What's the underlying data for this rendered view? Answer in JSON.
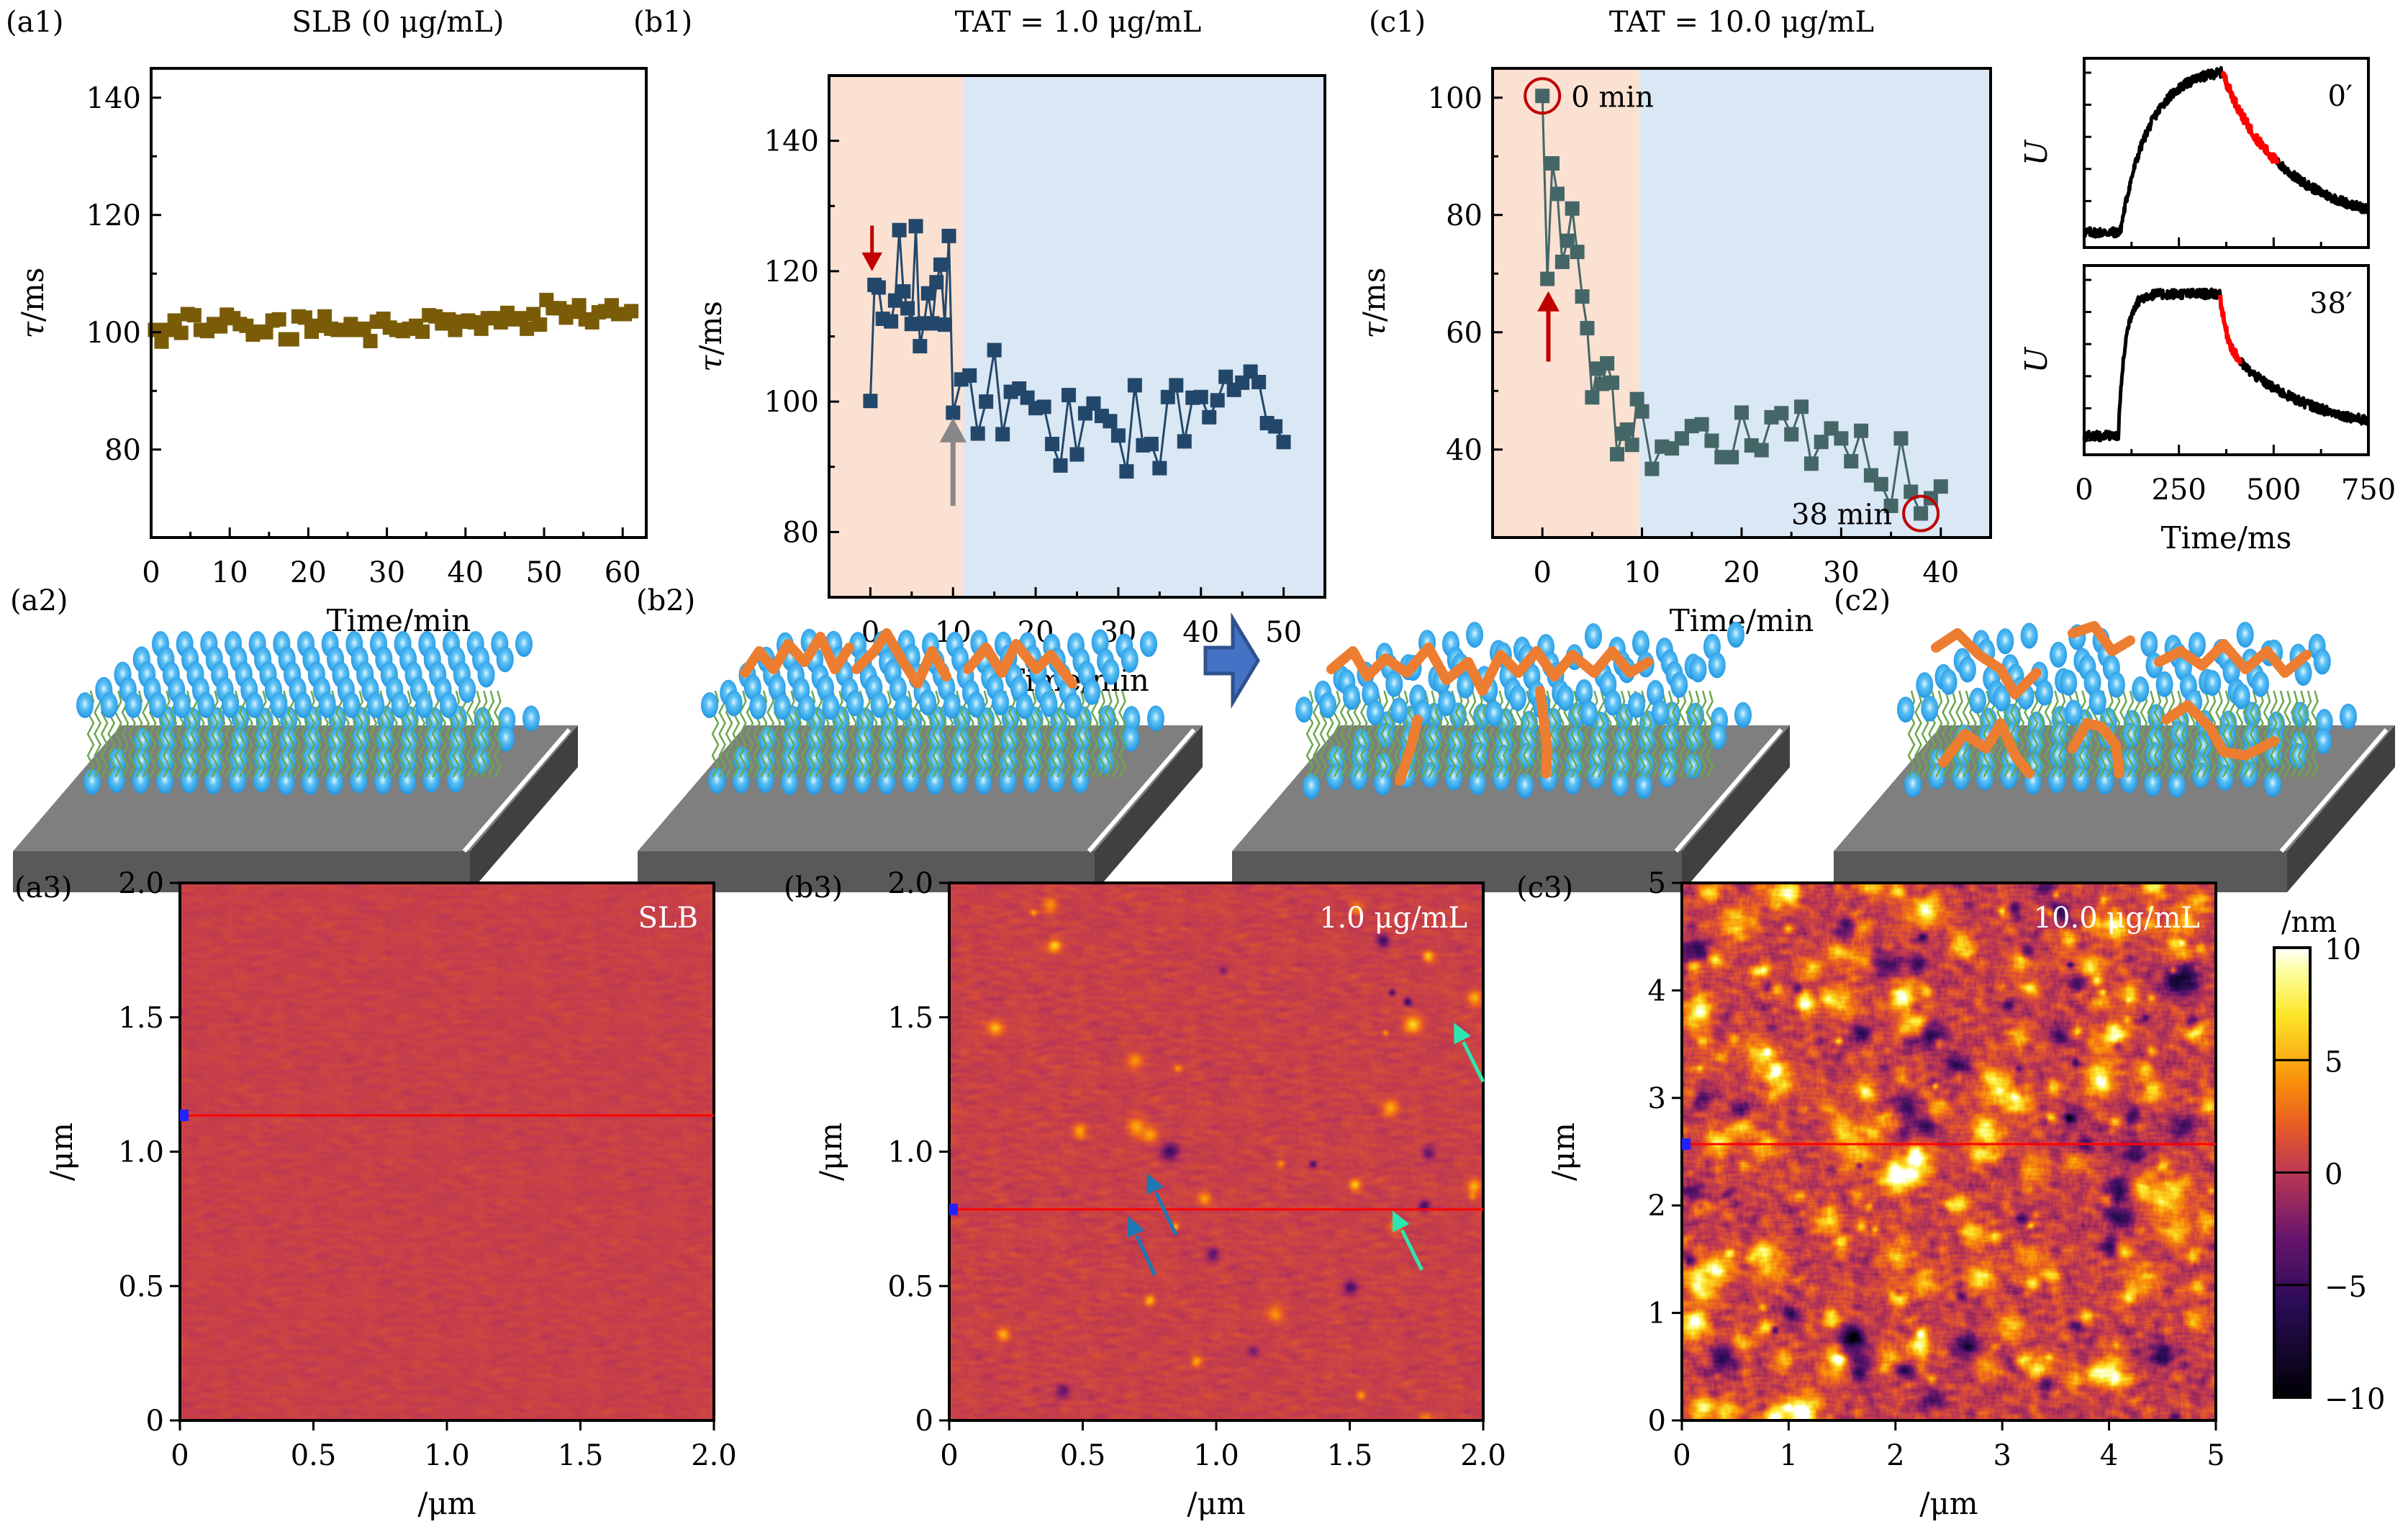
{
  "panels": {
    "a1": {
      "label": "(a1)",
      "title": "SLB (0 μg/mL)"
    },
    "b1": {
      "label": "(b1)",
      "title": "TAT = 1.0 μg/mL"
    },
    "c1": {
      "label": "(c1)",
      "title": "TAT = 10.0 μg/mL",
      "annot_start": "0 min",
      "annot_end": "38 min"
    },
    "u": {
      "top_tag": "0′",
      "bottom_tag": "38′"
    },
    "a2": {
      "label": "(a2)"
    },
    "b2": {
      "label": "(b2)"
    },
    "c2": {
      "label": "(c2)"
    },
    "a3": {
      "label": "(a3)",
      "tag": "SLB"
    },
    "b3": {
      "label": "(b3)",
      "tag": "1.0 μg/mL"
    },
    "c3": {
      "label": "(c3)",
      "tag": "10.0 μg/mL"
    }
  },
  "colors": {
    "a1_marker": "#7a5c08",
    "b1_marker": "#23476a",
    "c1_marker": "#456666",
    "phase1_bg": "#fae1d2",
    "phase2_bg": "#dae7f4",
    "arrow_red": "#c00000",
    "arrow_gray": "#888888",
    "circle_red": "#c00000",
    "trace": "#000000",
    "trace_fit": "#ff0000",
    "blue_arrow": "#1f77b4",
    "teal_arrow": "#2ee6b0",
    "scan_line": "#ff0000"
  },
  "chart_data": [
    {
      "id": "a1",
      "type": "scatter",
      "title": "SLB (0 μg/mL)",
      "xlabel": "Time/min",
      "ylabel": "τ/ms",
      "xlim": [
        0,
        63
      ],
      "ylim": [
        65,
        145
      ],
      "xticks": [
        0,
        10,
        20,
        30,
        40,
        50,
        60
      ],
      "yticks": [
        80,
        100,
        120,
        140
      ],
      "x_start": 0.5,
      "x_step": 0.83,
      "values": [
        100.4,
        98.4,
        100.4,
        102,
        99.9,
        103.1,
        102.9,
        100.4,
        100.2,
        101.4,
        101,
        103,
        102.4,
        101.4,
        101.1,
        99.6,
        100.1,
        100,
        102,
        102.2,
        98.8,
        98.8,
        102.7,
        102.5,
        100.1,
        101.1,
        102.7,
        100.6,
        100.4,
        100.4,
        101.4,
        100.4,
        100.6,
        98.5,
        101.8,
        102.3,
        100.8,
        100.4,
        100.2,
        100.6,
        101.1,
        100.1,
        102.9,
        102.7,
        101.5,
        102.2,
        100.4,
        101.8,
        102,
        101.7,
        100.6,
        102.4,
        102.4,
        101.7,
        103.3,
        102.2,
        102.4,
        100.6,
        103.1,
        101.3,
        105.5,
        104.1,
        104.1,
        102.5,
        103.5,
        104.6,
        102.2,
        101.7,
        103.4,
        103.6,
        104.6,
        103.1,
        103.1,
        103.6
      ]
    },
    {
      "id": "b1",
      "type": "line",
      "title": "TAT = 1.0 μg/mL",
      "xlabel": "Time/min",
      "ylabel": "τ/ms",
      "xlim": [
        -5,
        55
      ],
      "ylim": [
        70,
        150
      ],
      "xticks": [
        0,
        10,
        20,
        30,
        40,
        50
      ],
      "yticks": [
        80,
        100,
        120,
        140
      ],
      "phase_boundary": 11.2,
      "x": [
        0,
        0.5,
        1,
        1.5,
        2.5,
        3,
        3.5,
        4,
        4.5,
        5,
        5.5,
        6,
        6.5,
        7,
        7.5,
        8,
        8.5,
        9,
        9.5,
        10,
        11,
        12,
        13,
        14,
        15,
        16,
        17,
        18,
        19,
        20,
        21,
        22,
        23,
        24,
        25,
        26,
        27,
        28,
        29,
        30,
        31,
        32,
        33,
        34,
        35,
        36,
        37,
        38,
        39,
        40,
        41,
        42,
        43,
        44,
        45,
        46,
        47,
        48,
        49,
        50
      ],
      "values": [
        100.1,
        117.9,
        117.5,
        112.7,
        112.3,
        115.5,
        126.3,
        116.9,
        114.3,
        111.9,
        126.9,
        108.5,
        112,
        116.6,
        112,
        118.3,
        121,
        111.8,
        125.4,
        98.3,
        103.4,
        104,
        95.1,
        100,
        107.9,
        95,
        101.5,
        102,
        100.6,
        99,
        99.2,
        93.5,
        90.2,
        101,
        91.9,
        98.2,
        99.7,
        97.8,
        97,
        94.8,
        89.3,
        102.5,
        93.3,
        93.5,
        89.8,
        100.7,
        102.5,
        93.9,
        100.6,
        100.7,
        97.6,
        100.2,
        103.8,
        101.8,
        102.9,
        104.6,
        103,
        96.7,
        96.2,
        93.8
      ],
      "annotations": [
        {
          "type": "arrow-down",
          "color": "red",
          "x": 0.2,
          "y_from": 127,
          "y_to": 120
        },
        {
          "type": "arrow-up",
          "color": "gray",
          "x": 10,
          "y_from": 85,
          "y_to": 97
        }
      ]
    },
    {
      "id": "c1",
      "type": "line",
      "title": "TAT = 10.0 μg/mL",
      "xlabel": "Time/min",
      "ylabel": "τ/ms",
      "xlim": [
        -5,
        45
      ],
      "ylim": [
        25,
        105
      ],
      "xticks": [
        0,
        10,
        20,
        30,
        40
      ],
      "yticks": [
        40,
        60,
        80,
        100
      ],
      "phase_boundary": 9.8,
      "x": [
        0,
        0.5,
        1,
        1.5,
        2,
        2.5,
        3,
        3.5,
        4,
        4.5,
        5,
        5.5,
        6,
        6.5,
        7,
        7.5,
        8,
        8.5,
        9,
        9.5,
        10,
        11,
        12,
        13,
        14,
        15,
        16,
        17,
        18,
        19,
        20,
        21,
        22,
        23,
        24,
        25,
        26,
        27,
        28,
        29,
        30,
        31,
        32,
        33,
        34,
        35,
        36,
        37,
        38,
        39,
        40
      ],
      "values": [
        100.3,
        69.1,
        88.8,
        83.6,
        72,
        75.6,
        81.1,
        73.7,
        66.1,
        60.7,
        48.9,
        53.8,
        51.2,
        54.7,
        51.4,
        39.2,
        42.7,
        43.4,
        40.8,
        48.6,
        46.5,
        36.7,
        40.5,
        40.2,
        41.9,
        44,
        44.3,
        41.5,
        38.7,
        38.7,
        46.3,
        40.7,
        39.9,
        45.5,
        46.2,
        42.6,
        47.3,
        37.6,
        41.3,
        43.6,
        41.9,
        38,
        43.2,
        35.6,
        34.1,
        30.4,
        41.9,
        32.8,
        29.1,
        31.7,
        33.7
      ],
      "annotations": [
        {
          "type": "circle",
          "x": 0,
          "y": 100.3,
          "text": "0 min"
        },
        {
          "type": "circle",
          "x": 38,
          "y": 29.1,
          "text": "38 min"
        },
        {
          "type": "arrow-up",
          "color": "red",
          "x": 0.6,
          "y_from": 56,
          "y_to": 67
        }
      ]
    },
    {
      "id": "u_traces",
      "type": "line",
      "xlabel": "Time/ms",
      "ylabel": "U",
      "xlim": [
        0,
        750
      ],
      "xticks": [
        0,
        250,
        500,
        750
      ],
      "series": [
        {
          "name": "0′",
          "baseline": 0.08,
          "plateau": 0.95,
          "t_on": 95,
          "t_off": 365,
          "tau_rise": 75,
          "tau_fall": 95,
          "fit_window": [
            365,
            510
          ]
        },
        {
          "name": "38′",
          "baseline": 0.1,
          "plateau": 0.85,
          "t_on": 90,
          "t_off": 358,
          "tau_rise": 18,
          "tau_fall": 18,
          "fit_window": [
            358,
            412
          ]
        }
      ]
    }
  ],
  "afm": [
    {
      "id": "a3",
      "tag": "SLB",
      "xlabel": "/μm",
      "ylabel": "/μm",
      "range": [
        0,
        2.0
      ],
      "ticks": [
        "0",
        "0.5",
        "1.0",
        "1.5",
        "2.0"
      ],
      "tickvals": [
        0,
        0.5,
        1.0,
        1.5,
        2.0
      ],
      "scan_line_y": 1.135,
      "roughness": "low"
    },
    {
      "id": "b3",
      "tag": "1.0 μg/mL",
      "xlabel": "/μm",
      "ylabel": "/μm",
      "range": [
        0,
        2.0
      ],
      "ticks": [
        "0",
        "0.5",
        "1.0",
        "1.5",
        "2.0"
      ],
      "tickvals": [
        0,
        0.5,
        1.0,
        1.5,
        2.0
      ],
      "scan_line_y": 0.785,
      "roughness": "medium"
    },
    {
      "id": "c3",
      "tag": "10.0 μg/mL",
      "xlabel": "/μm",
      "ylabel": "/μm",
      "range": [
        0,
        5
      ],
      "ticks": [
        "0",
        "1",
        "2",
        "3",
        "4",
        "5"
      ],
      "tickvals": [
        0,
        1,
        2,
        3,
        4,
        5
      ],
      "scan_line_y": 2.57,
      "roughness": "high"
    }
  ],
  "colorbar": {
    "unit": "/nm",
    "min": -10,
    "max": 10,
    "ticks": [
      10,
      5,
      0,
      -5,
      -10
    ],
    "tick_labels": [
      "10",
      "5",
      "0",
      "−5",
      "−10"
    ]
  }
}
